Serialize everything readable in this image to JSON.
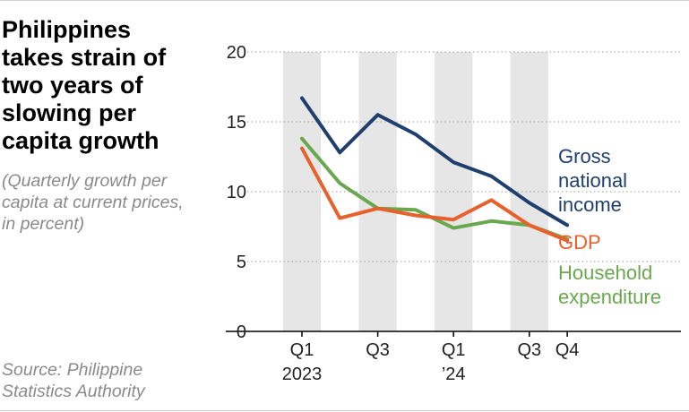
{
  "title": "Philippines takes strain of two years of slowing per capita growth",
  "subtitle": "(Quarterly growth per capita at current prices, in percent)",
  "source": "Source: Philippine Statistics Authority",
  "chart_data": {
    "type": "line",
    "categories": [
      "Q1 2023",
      "Q2 2023",
      "Q3 2023",
      "Q4 2023",
      "Q1 2024",
      "Q2 2024",
      "Q3 2024",
      "Q4 2024"
    ],
    "x_tick_labels": [
      {
        "index": 0,
        "line1": "Q1",
        "line2": "2023"
      },
      {
        "index": 2,
        "line1": "Q3",
        "line2": ""
      },
      {
        "index": 4,
        "line1": "Q1",
        "line2": "’24"
      },
      {
        "index": 6,
        "line1": "Q3",
        "line2": ""
      },
      {
        "index": 7,
        "line1": "Q4",
        "line2": ""
      }
    ],
    "ylim": [
      0,
      20
    ],
    "yticks": [
      0,
      5,
      10,
      15,
      20
    ],
    "shaded_quarters": [
      0,
      2,
      4,
      6
    ],
    "series": [
      {
        "name": "Gross national income",
        "label_lines": [
          "Gross",
          "national",
          "income"
        ],
        "color": "#1f3f6e",
        "values": [
          16.7,
          12.8,
          15.5,
          14.1,
          12.1,
          11.1,
          9.2,
          7.6
        ]
      },
      {
        "name": "GDP",
        "label_lines": [
          "GDP"
        ],
        "color": "#e8602c",
        "values": [
          13.1,
          8.1,
          8.8,
          8.3,
          8.0,
          9.4,
          7.6,
          6.5
        ]
      },
      {
        "name": "Household expenditure",
        "label_lines": [
          "Household",
          "expenditure"
        ],
        "color": "#6aa84f",
        "values": [
          13.8,
          10.6,
          8.8,
          8.7,
          7.4,
          7.9,
          7.6,
          6.6
        ]
      }
    ]
  }
}
